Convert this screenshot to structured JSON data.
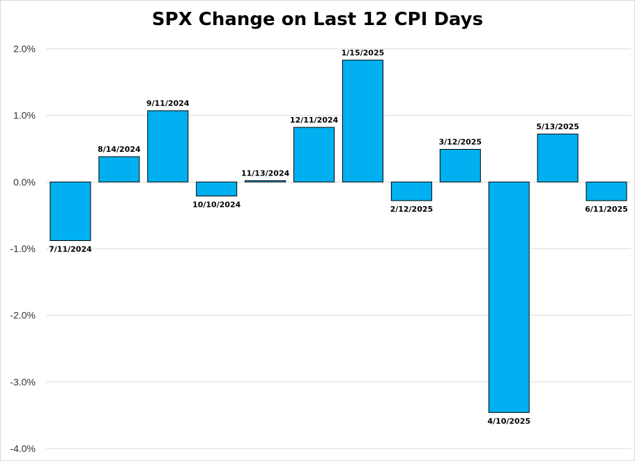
{
  "chart_data": {
    "type": "bar",
    "title": "SPX Change on Last 12 CPI Days",
    "xlabel": "",
    "ylabel": "",
    "categories": [
      "7/11/2024",
      "8/14/2024",
      "9/11/2024",
      "10/10/2024",
      "11/13/2024",
      "12/11/2024",
      "1/15/2025",
      "2/12/2025",
      "3/12/2025",
      "4/10/2025",
      "5/13/2025",
      "6/11/2025"
    ],
    "values": [
      -0.88,
      0.38,
      1.07,
      -0.21,
      0.02,
      0.82,
      1.83,
      -0.28,
      0.49,
      -3.46,
      0.72,
      -0.28
    ],
    "ylim": [
      -4.0,
      2.0
    ],
    "yticks": [
      2.0,
      1.0,
      0.0,
      -1.0,
      -2.0,
      -3.0,
      -4.0
    ],
    "ytick_labels": [
      "2.0%",
      "1.0%",
      "0.0%",
      "-1.0%",
      "-2.0%",
      "-3.0%",
      "-4.0%"
    ],
    "grid": true,
    "bar_color": "#00B0F0",
    "bar_edge_color": "#000000",
    "grid_color": "#d9d9d9"
  }
}
